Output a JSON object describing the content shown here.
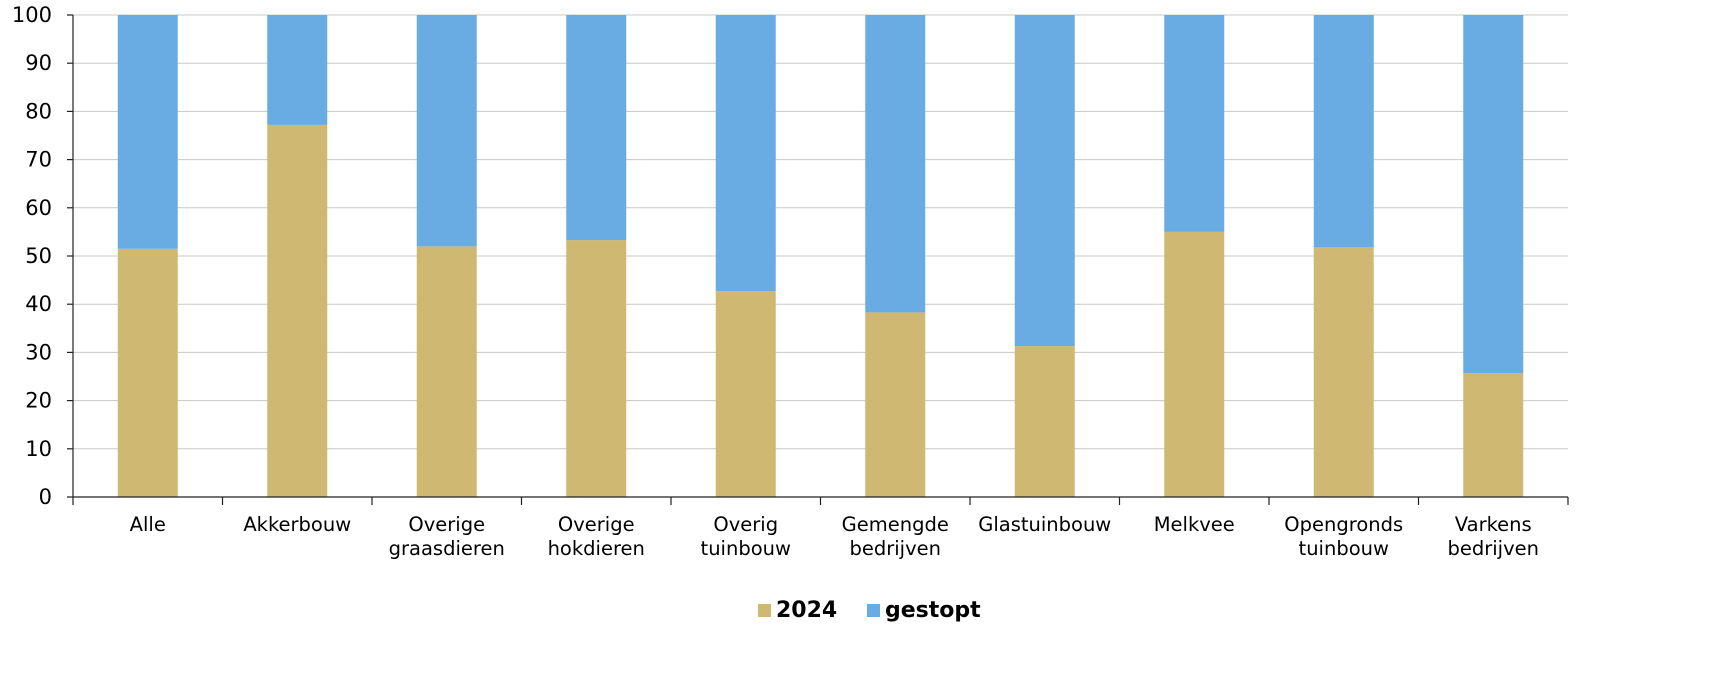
{
  "chart_data": {
    "type": "bar",
    "stacked": true,
    "title": "",
    "xlabel": "",
    "ylabel": "",
    "ylim": [
      0,
      100
    ],
    "yticks": [
      0,
      10,
      20,
      30,
      40,
      50,
      60,
      70,
      80,
      90,
      100
    ],
    "grid": true,
    "legend_position": "bottom-center",
    "categories": [
      [
        "Alle"
      ],
      [
        "Akkerbouw"
      ],
      [
        "Overige",
        "graasdieren"
      ],
      [
        "Overige",
        "hokdieren"
      ],
      [
        "Overig",
        "tuinbouw"
      ],
      [
        "Gemengde",
        "bedrijven"
      ],
      [
        "Glastuinbouw"
      ],
      [
        "Melkvee"
      ],
      [
        "Opengronds",
        "tuinbouw"
      ],
      [
        "Varkens",
        "bedrijven"
      ]
    ],
    "series": [
      {
        "name": "2024",
        "color": "#cfb871",
        "values": [
          51.5,
          77.2,
          52.0,
          53.3,
          42.7,
          38.3,
          31.3,
          55.0,
          51.8,
          25.7
        ]
      },
      {
        "name": "gestopt",
        "color": "#69ace3",
        "values": [
          48.5,
          22.8,
          48.0,
          46.7,
          57.3,
          61.7,
          68.7,
          45.0,
          48.2,
          74.3
        ]
      }
    ],
    "colors": {
      "grid": "#c8c8c8",
      "axis": "#222222"
    }
  }
}
